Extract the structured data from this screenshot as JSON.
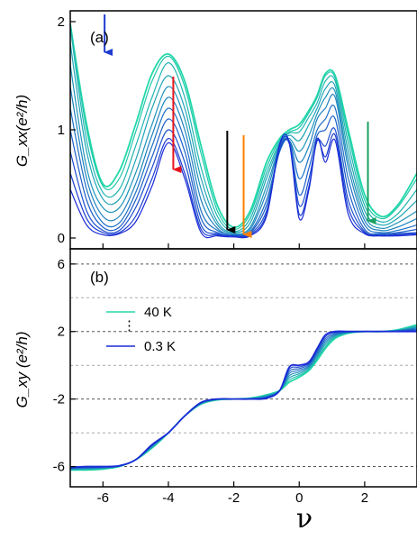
{
  "figure": {
    "panel_a_label": "(a)",
    "panel_b_label": "(b)",
    "xlabel": "ν",
    "ylabel_a": "G_xx(e²/h)",
    "ylabel_b": "G_xy (e²/h)",
    "legend": {
      "top": "40 K",
      "bottom": "0.3 K",
      "dots": "⋮"
    }
  },
  "chart_data": [
    {
      "type": "line",
      "panel": "(a)",
      "ylabel": "Gxx(e²/h)",
      "xlim": [
        -7,
        3.6
      ],
      "ylim": [
        -0.1,
        2.1
      ],
      "x_ticks": [
        -6,
        -4,
        -2,
        0,
        2
      ],
      "y_ticks": [
        0,
        1,
        2
      ],
      "grid": false,
      "colors": {
        "cold": "#1a2bd6",
        "hot": "#22d8a8"
      },
      "arrows": [
        {
          "x": -5.95,
          "color": "#1f3bd0"
        },
        {
          "x": -3.85,
          "color": "#e8141c"
        },
        {
          "x": -2.2,
          "color": "#000000"
        },
        {
          "x": -1.7,
          "color": "#ff8000"
        },
        {
          "x": 2.1,
          "color": "#1aa060"
        }
      ],
      "x": [
        -7,
        -6.5,
        -6,
        -5.5,
        -5,
        -4.5,
        -4,
        -3.5,
        -3,
        -2.5,
        -2,
        -1.5,
        -1,
        -0.6,
        -0.3,
        0,
        0.3,
        0.55,
        0.8,
        1.1,
        1.5,
        2,
        2.5,
        3,
        3.6
      ],
      "series": [
        {
          "values": [
            1.98,
            1.05,
            0.5,
            0.62,
            1.05,
            1.52,
            1.7,
            1.45,
            0.85,
            0.3,
            0.1,
            0.25,
            0.7,
            0.92,
            1.0,
            1.05,
            1.18,
            1.32,
            1.52,
            1.5,
            1.0,
            0.4,
            0.2,
            0.3,
            0.6
          ]
        },
        {
          "values": [
            1.98,
            1.0,
            0.48,
            0.55,
            0.98,
            1.45,
            1.68,
            1.4,
            0.78,
            0.25,
            0.08,
            0.22,
            0.65,
            0.9,
            0.98,
            1.02,
            1.16,
            1.3,
            1.5,
            1.48,
            0.95,
            0.35,
            0.18,
            0.28,
            0.55
          ]
        },
        {
          "values": [
            1.95,
            0.9,
            0.42,
            0.45,
            0.85,
            1.3,
            1.62,
            1.3,
            0.65,
            0.2,
            0.06,
            0.18,
            0.6,
            0.88,
            0.97,
            0.98,
            1.12,
            1.25,
            1.45,
            1.45,
            0.88,
            0.3,
            0.15,
            0.22,
            0.45
          ]
        },
        {
          "values": [
            1.8,
            0.8,
            0.36,
            0.36,
            0.72,
            1.2,
            1.5,
            1.2,
            0.55,
            0.15,
            0.05,
            0.14,
            0.55,
            0.86,
            0.95,
            0.9,
            1.05,
            1.2,
            1.38,
            1.4,
            0.8,
            0.25,
            0.12,
            0.18,
            0.35
          ]
        },
        {
          "values": [
            1.6,
            0.65,
            0.28,
            0.28,
            0.6,
            1.05,
            1.4,
            1.1,
            0.45,
            0.12,
            0.04,
            0.1,
            0.48,
            0.84,
            0.92,
            0.8,
            0.95,
            1.15,
            1.3,
            1.35,
            0.72,
            0.2,
            0.09,
            0.14,
            0.25
          ]
        },
        {
          "values": [
            1.4,
            0.55,
            0.2,
            0.2,
            0.5,
            0.95,
            1.3,
            1.0,
            0.35,
            0.09,
            0.03,
            0.08,
            0.42,
            0.83,
            0.9,
            0.7,
            0.85,
            1.1,
            1.2,
            1.3,
            0.65,
            0.16,
            0.07,
            0.1,
            0.18
          ]
        },
        {
          "values": [
            1.2,
            0.45,
            0.14,
            0.14,
            0.42,
            0.85,
            1.2,
            0.9,
            0.25,
            0.07,
            0.03,
            0.06,
            0.35,
            0.8,
            0.9,
            0.55,
            0.75,
            1.0,
            1.1,
            1.2,
            0.55,
            0.12,
            0.05,
            0.07,
            0.12
          ]
        },
        {
          "values": [
            1.0,
            0.35,
            0.1,
            0.1,
            0.35,
            0.75,
            1.1,
            0.8,
            0.18,
            0.05,
            0.02,
            0.05,
            0.3,
            0.8,
            0.88,
            0.4,
            0.65,
            0.95,
            1.0,
            1.1,
            0.45,
            0.08,
            0.04,
            0.05,
            0.08
          ]
        },
        {
          "values": [
            0.8,
            0.25,
            0.07,
            0.07,
            0.28,
            0.65,
            1.0,
            0.7,
            0.12,
            0.04,
            0.02,
            0.04,
            0.25,
            0.82,
            0.87,
            0.3,
            0.55,
            0.9,
            0.85,
            1.0,
            0.35,
            0.06,
            0.03,
            0.04,
            0.05
          ]
        },
        {
          "values": [
            0.6,
            0.18,
            0.05,
            0.05,
            0.2,
            0.55,
            0.92,
            0.6,
            0.08,
            0.03,
            0.02,
            0.03,
            0.22,
            0.85,
            0.87,
            0.22,
            0.48,
            0.9,
            0.75,
            0.95,
            0.28,
            0.05,
            0.02,
            0.03,
            0.04
          ]
        },
        {
          "values": [
            0.45,
            0.12,
            0.03,
            0.04,
            0.15,
            0.48,
            0.88,
            0.55,
            0.05,
            0.02,
            0.01,
            0.02,
            0.2,
            0.87,
            0.88,
            0.18,
            0.45,
            0.92,
            0.7,
            0.9,
            0.22,
            0.04,
            0.02,
            0.02,
            0.03
          ]
        }
      ]
    },
    {
      "type": "line",
      "panel": "(b)",
      "ylabel": "Gxy (e²/h)",
      "xlabel": "ν",
      "xlim": [
        -7,
        3.6
      ],
      "ylim": [
        -7.2,
        6.9
      ],
      "x_ticks": [
        -6,
        -4,
        -2,
        0,
        2
      ],
      "y_ticks": [
        -6,
        -2,
        2,
        6
      ],
      "grid_dashed_y": [
        -6,
        -4,
        -2,
        0,
        2,
        4,
        6
      ],
      "legend_position": "upper-left",
      "x": [
        -7,
        -6.5,
        -6,
        -5.5,
        -5,
        -4.5,
        -4,
        -3.5,
        -3,
        -2.5,
        -2,
        -1.5,
        -1,
        -0.6,
        -0.3,
        0,
        0.3,
        0.55,
        0.8,
        1.1,
        1.5,
        2,
        2.5,
        3,
        3.6
      ],
      "series": [
        {
          "name": "40 K",
          "values": [
            -6.2,
            -6.2,
            -6.15,
            -6.0,
            -5.6,
            -4.9,
            -4.0,
            -3.0,
            -2.3,
            -2.05,
            -2.0,
            -1.95,
            -1.75,
            -1.5,
            -1.0,
            -0.7,
            -0.3,
            0.3,
            1.0,
            1.6,
            1.9,
            2.0,
            2.0,
            2.1,
            2.4
          ]
        },
        {
          "name": "0.3 K",
          "values": [
            -6.05,
            -6.0,
            -6.0,
            -5.95,
            -5.6,
            -4.7,
            -4.0,
            -3.0,
            -2.2,
            -2.0,
            -2.0,
            -2.0,
            -1.95,
            -1.5,
            -0.1,
            0.0,
            0.2,
            1.0,
            1.8,
            2.0,
            2.0,
            2.0,
            2.0,
            2.0,
            2.0
          ]
        }
      ]
    }
  ]
}
